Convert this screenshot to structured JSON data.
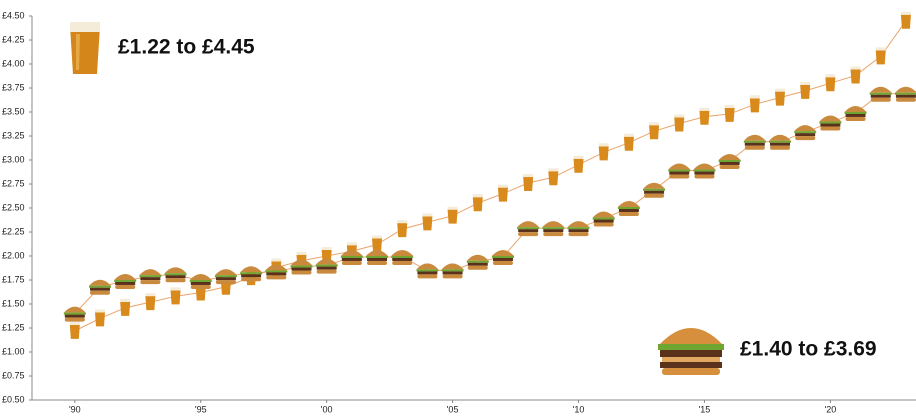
{
  "chart_data": {
    "type": "line",
    "x": [
      1990,
      1991,
      1992,
      1993,
      1994,
      1995,
      1996,
      1997,
      1998,
      1999,
      2000,
      2001,
      2002,
      2003,
      2004,
      2005,
      2006,
      2007,
      2008,
      2009,
      2010,
      2011,
      2012,
      2013,
      2014,
      2015,
      2016,
      2017,
      2018,
      2019,
      2020,
      2021,
      2022,
      2023
    ],
    "series": [
      {
        "marker": "beer",
        "color": "#d98a1c",
        "values": [
          1.22,
          1.35,
          1.46,
          1.52,
          1.58,
          1.62,
          1.68,
          1.78,
          1.88,
          1.95,
          2.0,
          2.05,
          2.12,
          2.28,
          2.35,
          2.42,
          2.55,
          2.65,
          2.76,
          2.82,
          2.95,
          3.08,
          3.18,
          3.3,
          3.38,
          3.45,
          3.48,
          3.58,
          3.65,
          3.72,
          3.8,
          3.88,
          4.08,
          4.45
        ]
      },
      {
        "marker": "burger",
        "color": "#c98a3e",
        "values": [
          1.4,
          1.68,
          1.74,
          1.79,
          1.81,
          1.74,
          1.79,
          1.82,
          1.84,
          1.89,
          1.9,
          1.99,
          1.99,
          1.99,
          1.85,
          1.85,
          1.94,
          1.99,
          2.29,
          2.29,
          2.29,
          2.39,
          2.5,
          2.69,
          2.89,
          2.89,
          2.99,
          3.19,
          3.19,
          3.29,
          3.39,
          3.49,
          3.69,
          3.69
        ]
      }
    ],
    "line_color": "#eaa46a",
    "annotations": [
      "£1.22 to £4.45",
      "£1.40 to £3.69"
    ],
    "xlim": [
      1988.3,
      2023.4
    ],
    "ylim": [
      0.5,
      4.5
    ],
    "xticks": [
      {
        "value": 1990,
        "label": "'90"
      },
      {
        "value": 1995,
        "label": "'95"
      },
      {
        "value": 2000,
        "label": "'00"
      },
      {
        "value": 2005,
        "label": "'05"
      },
      {
        "value": 2010,
        "label": "'10"
      },
      {
        "value": 2015,
        "label": "'15"
      },
      {
        "value": 2020,
        "label": "'20"
      }
    ],
    "yticks": [
      {
        "value": 0.5,
        "label": "£0.50"
      },
      {
        "value": 0.75,
        "label": "£0.75"
      },
      {
        "value": 1.0,
        "label": "£1.00"
      },
      {
        "value": 1.25,
        "label": "£1.25"
      },
      {
        "value": 1.5,
        "label": "£1.50"
      },
      {
        "value": 1.75,
        "label": "£1.75"
      },
      {
        "value": 2.0,
        "label": "£2.00"
      },
      {
        "value": 2.25,
        "label": "£2.25"
      },
      {
        "value": 2.5,
        "label": "£2.50"
      },
      {
        "value": 2.75,
        "label": "£2.75"
      },
      {
        "value": 3.0,
        "label": "£3.00"
      },
      {
        "value": 3.25,
        "label": "£3.25"
      },
      {
        "value": 3.5,
        "label": "£3.50"
      },
      {
        "value": 3.75,
        "label": "£3.75"
      },
      {
        "value": 4.0,
        "label": "£4.00"
      },
      {
        "value": 4.25,
        "label": "£4.25"
      },
      {
        "value": 4.5,
        "label": "£4.50"
      }
    ]
  }
}
